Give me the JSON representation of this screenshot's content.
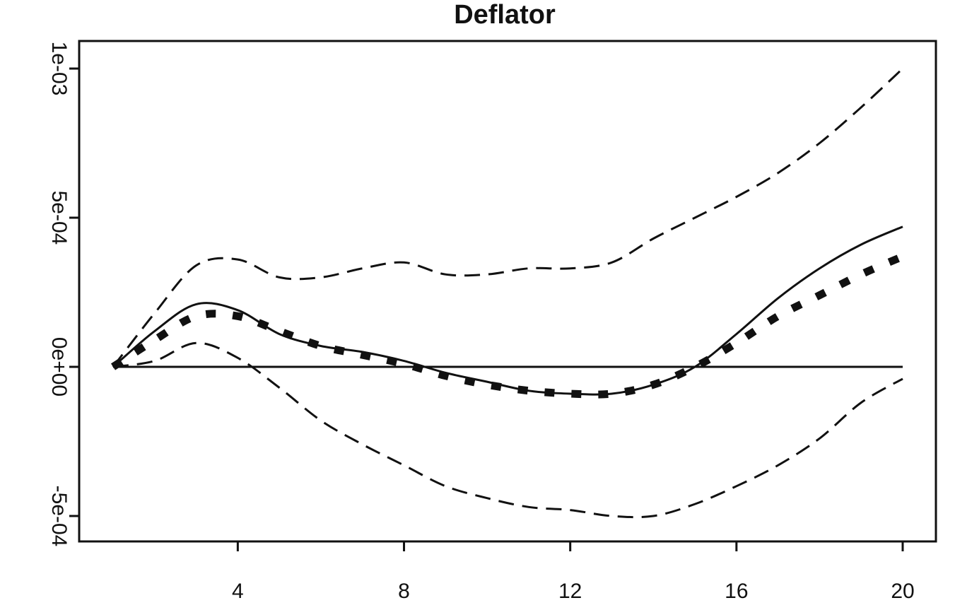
{
  "chart_data": {
    "type": "line",
    "title": "Deflator",
    "xlabel": "",
    "ylabel": "",
    "xlim": [
      1,
      20
    ],
    "ylim": [
      -0.0005,
      0.001
    ],
    "x_ticks": [
      4,
      8,
      12,
      16,
      20
    ],
    "y_ticks": [
      {
        "value": -0.0005,
        "label": "-5e-04"
      },
      {
        "value": 0,
        "label": "0e+00"
      },
      {
        "value": 0.0005,
        "label": "5e-04"
      },
      {
        "value": 0.001,
        "label": "1e-03"
      }
    ],
    "grid": false,
    "legend": "none",
    "reference_line": {
      "y": 0,
      "style": "solid"
    },
    "x": [
      1,
      2,
      3,
      4,
      5,
      6,
      7,
      8,
      9,
      10,
      11,
      12,
      13,
      14,
      15,
      16,
      17,
      18,
      19,
      20
    ],
    "series": [
      {
        "style": "solid",
        "values": [
          0.0,
          0.00012,
          0.00021,
          0.00019,
          0.00011,
          7e-05,
          5e-05,
          2e-05,
          -2e-05,
          -5e-05,
          -8e-05,
          -9e-05,
          -9e-05,
          -6e-05,
          0.0,
          0.00011,
          0.00023,
          0.00033,
          0.00041,
          0.00047
        ]
      },
      {
        "style": "thick-dotted",
        "values": [
          0.0,
          9e-05,
          0.00017,
          0.00017,
          0.00012,
          7e-05,
          4e-05,
          1e-05,
          -3e-05,
          -6e-05,
          -8e-05,
          -9e-05,
          -9e-05,
          -6e-05,
          0.0,
          8e-05,
          0.00017,
          0.00024,
          0.00031,
          0.00037
        ]
      },
      {
        "style": "dashed",
        "values": [
          0.0,
          0.00018,
          0.00034,
          0.00036,
          0.0003,
          0.0003,
          0.00033,
          0.00035,
          0.00031,
          0.00031,
          0.00033,
          0.00033,
          0.00035,
          0.00043,
          0.0005,
          0.00057,
          0.00065,
          0.00075,
          0.00087,
          0.001
        ]
      },
      {
        "style": "dashed",
        "values": [
          0.0,
          2e-05,
          8e-05,
          3e-05,
          -7e-05,
          -0.00018,
          -0.00026,
          -0.00033,
          -0.0004,
          -0.00044,
          -0.00047,
          -0.00048,
          -0.0005,
          -0.0005,
          -0.00046,
          -0.0004,
          -0.00033,
          -0.00024,
          -0.00012,
          -4e-05
        ]
      }
    ]
  }
}
